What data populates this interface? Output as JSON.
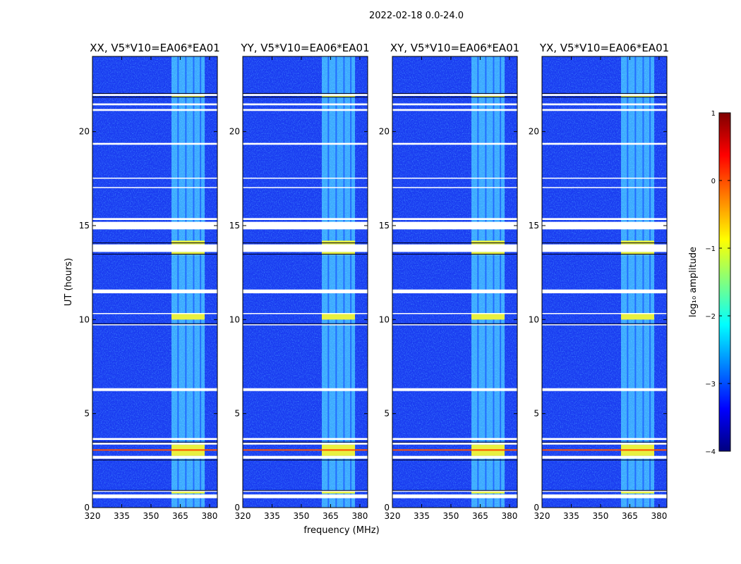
{
  "chart_data": {
    "type": "heatmap",
    "title": "2022-02-18 0.0-24.0",
    "xlabel": "frequency (MHz)",
    "ylabel": "UT (hours)",
    "xlim": [
      320,
      384
    ],
    "ylim": [
      0,
      24
    ],
    "xticks": [
      320,
      335,
      350,
      365,
      380
    ],
    "yticks": [
      0,
      5,
      10,
      15,
      20
    ],
    "panels": [
      {
        "name": "XX, V5*V10=EA06*EA01"
      },
      {
        "name": "YY, V5*V10=EA06*EA01"
      },
      {
        "name": "XY, V5*V10=EA06*EA01"
      },
      {
        "name": "YX, V5*V10=EA06*EA01"
      }
    ],
    "signal_band_mhz": [
      360.5,
      377.5
    ],
    "colorbar": {
      "label": "log₁₀ amplitude",
      "range": [
        -4,
        1
      ],
      "ticks": [
        1,
        0,
        -1,
        -2,
        -3,
        -4
      ],
      "tick_labels": [
        "1",
        "0",
        "−1",
        "−2",
        "−3",
        "−4"
      ],
      "colormap": [
        "#00007f",
        "#0000ff",
        "#0080ff",
        "#00ffff",
        "#80ff80",
        "#ffff00",
        "#ff8000",
        "#ff0000",
        "#7f0000"
      ]
    },
    "flagged_rows_hours": [
      [
        0.5,
        0.7
      ],
      [
        0.85,
        0.9
      ],
      [
        2.6,
        2.75
      ],
      [
        3.35,
        3.45
      ],
      [
        3.6,
        3.7
      ],
      [
        6.2,
        6.35
      ],
      [
        9.7,
        9.75
      ],
      [
        10.3,
        10.35
      ],
      [
        11.4,
        11.6
      ],
      [
        13.6,
        14.0
      ],
      [
        14.8,
        15.2
      ],
      [
        15.3,
        15.4
      ],
      [
        17.0,
        17.05
      ],
      [
        17.5,
        17.55
      ],
      [
        19.3,
        19.4
      ],
      [
        21.1,
        21.2
      ],
      [
        21.4,
        21.5
      ],
      [
        21.9,
        22.0
      ]
    ],
    "bright_rows_hours": [
      [
        0.75,
        0.85
      ],
      [
        2.75,
        3.35
      ],
      [
        10.0,
        10.3
      ],
      [
        13.45,
        13.6
      ],
      [
        14.0,
        14.2
      ],
      [
        21.85,
        21.9
      ]
    ]
  }
}
